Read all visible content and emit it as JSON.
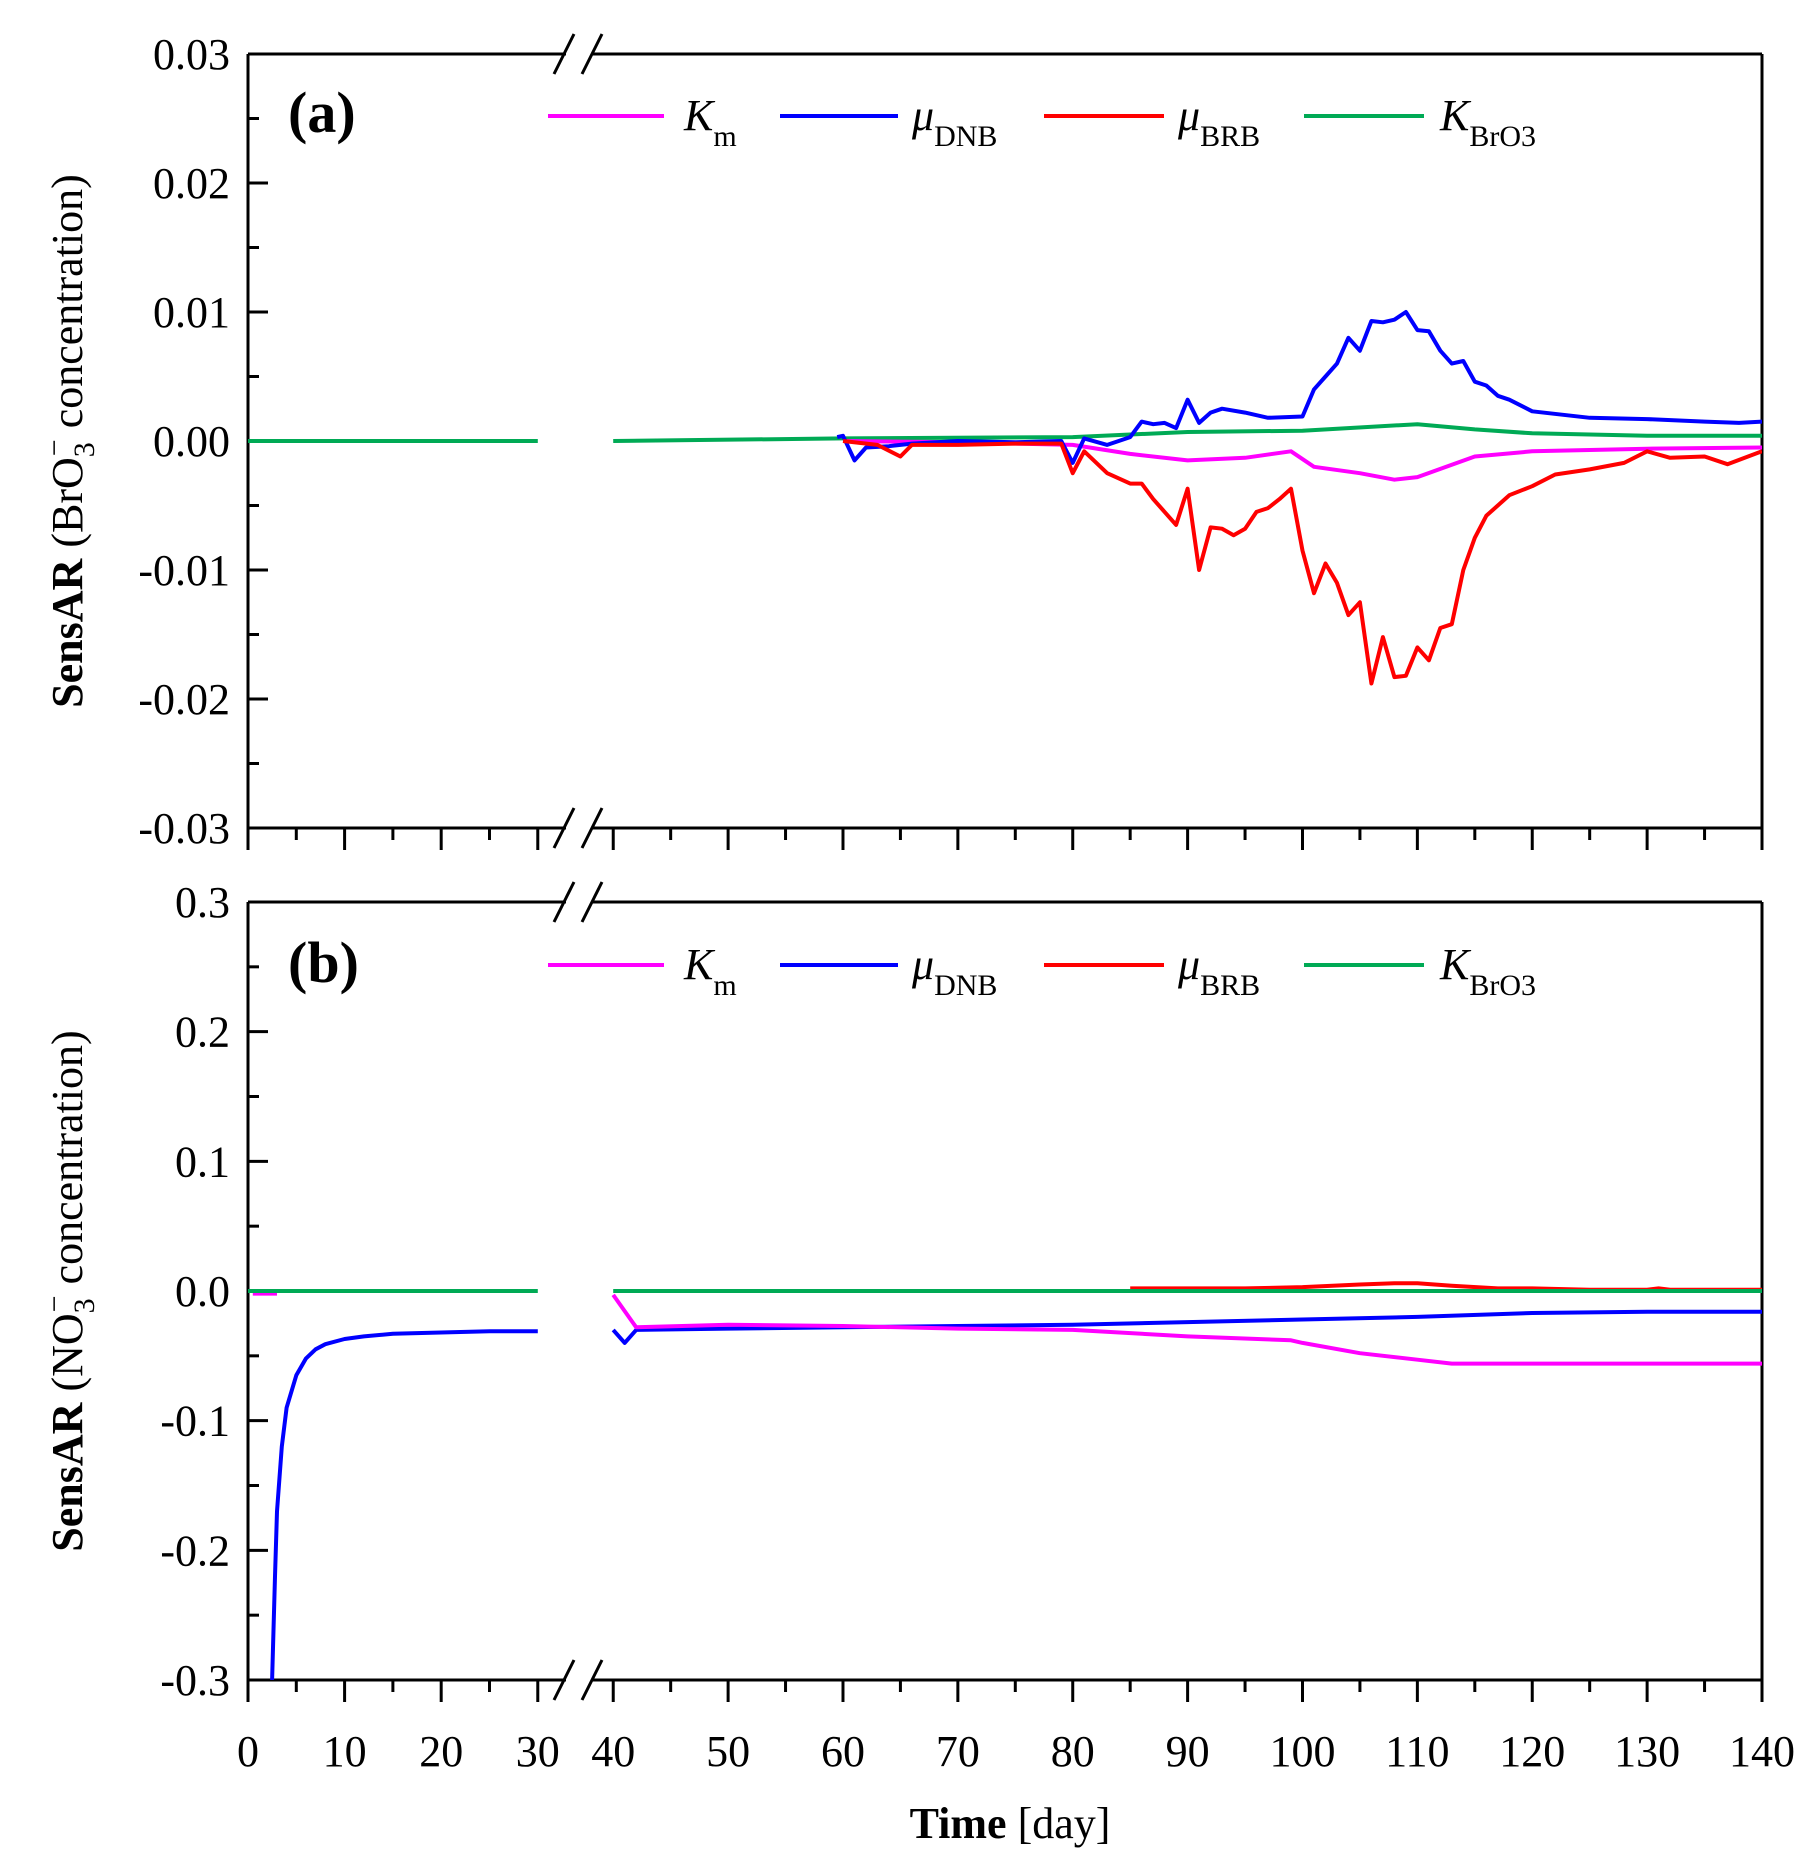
{
  "figure": {
    "xlabel_bold": "Time",
    "xlabel_rest": " [day]",
    "x_ticks_left": [
      0,
      10,
      20,
      30
    ],
    "x_ticks_right": [
      40,
      50,
      60,
      70,
      80,
      90,
      100,
      110,
      120,
      130,
      140
    ],
    "x_break": {
      "left_range": [
        0,
        30
      ],
      "right_range": [
        40,
        140
      ],
      "mark": "//"
    }
  },
  "colors": {
    "Km": "#ff00ff",
    "muDNB": "#0000ff",
    "muBRB": "#ff0000",
    "KBrO3": "#00aa55"
  },
  "chart_data": [
    {
      "type": "line",
      "panel_label": "(a)",
      "ylabel_bold": "SensAR",
      "ylabel_species": "BrO",
      "ylabel_species_sub": "3",
      "ylabel_species_sup": "−",
      "ylabel_rest": " concentration)",
      "ylim": [
        -0.03,
        0.03
      ],
      "y_ticks": [
        "-0.03",
        "-0.02",
        "-0.01",
        "0.00",
        "0.01",
        "0.02",
        "0.03"
      ],
      "y_tick_values": [
        -0.03,
        -0.02,
        -0.01,
        0.0,
        0.01,
        0.02,
        0.03
      ],
      "legend": [
        {
          "key": "Km",
          "label": "K",
          "sub": "m"
        },
        {
          "key": "muDNB",
          "label": "μ",
          "sub": "DNB"
        },
        {
          "key": "muBRB",
          "label": "μ",
          "sub": "BRB"
        },
        {
          "key": "KBrO3",
          "label": "K",
          "sub": "BrO3"
        }
      ],
      "series": [
        {
          "key": "KBrO3",
          "name": "K_BrO3",
          "x": [
            0,
            30,
            40,
            60,
            80,
            90,
            100,
            110,
            115,
            120,
            130,
            140
          ],
          "y": [
            0,
            0,
            0,
            0.0002,
            0.0003,
            0.0007,
            0.0008,
            0.0013,
            0.0009,
            0.0006,
            0.0004,
            0.0004
          ]
        },
        {
          "key": "Km",
          "name": "K_m",
          "x": [
            60,
            70,
            80,
            85,
            90,
            95,
            99,
            101,
            105,
            108,
            110,
            115,
            120,
            130,
            140
          ],
          "y": [
            0,
            -0.0001,
            -0.0003,
            -0.001,
            -0.0015,
            -0.0013,
            -0.0008,
            -0.002,
            -0.0025,
            -0.003,
            -0.0028,
            -0.0012,
            -0.0008,
            -0.0006,
            -0.0005
          ]
        },
        {
          "key": "muDNB",
          "name": "μ_DNB",
          "x": [
            59.5,
            60,
            61,
            62,
            64,
            66,
            70,
            75,
            79,
            80,
            81,
            83,
            85,
            86,
            87,
            88,
            89,
            90,
            91,
            92,
            93,
            95,
            97,
            100,
            101,
            102,
            103,
            104,
            105,
            106,
            107,
            108,
            109,
            110,
            111,
            112,
            113,
            114,
            115,
            116,
            117,
            118,
            120,
            125,
            130,
            135,
            138,
            140
          ],
          "y": [
            0.0003,
            0.0004,
            -0.0015,
            -0.0005,
            -0.0004,
            -0.0002,
            0,
            -0.0001,
            0,
            -0.0017,
            0.0002,
            -0.0003,
            0.0003,
            0.0015,
            0.0013,
            0.0014,
            0.001,
            0.0032,
            0.0014,
            0.0022,
            0.0025,
            0.0022,
            0.0018,
            0.0019,
            0.004,
            0.005,
            0.006,
            0.008,
            0.007,
            0.0093,
            0.0092,
            0.0094,
            0.01,
            0.0086,
            0.0085,
            0.007,
            0.006,
            0.0062,
            0.0046,
            0.0043,
            0.0035,
            0.0032,
            0.0023,
            0.0018,
            0.0017,
            0.0015,
            0.0014,
            0.0015
          ]
        },
        {
          "key": "muBRB",
          "name": "μ_BRB",
          "x": [
            60,
            63,
            65,
            66,
            70,
            75,
            79,
            80,
            81,
            83,
            85,
            86,
            87,
            88,
            89,
            90,
            91,
            92,
            93,
            94,
            95,
            96,
            97,
            98,
            99,
            100,
            101,
            102,
            103,
            104,
            105,
            106,
            107,
            108,
            109,
            110,
            111,
            112,
            113,
            114,
            115,
            116,
            118,
            120,
            122,
            125,
            128,
            130,
            132,
            135,
            137,
            140
          ],
          "y": [
            0,
            -0.0003,
            -0.0012,
            -0.0003,
            -0.0003,
            -0.0002,
            -0.0002,
            -0.0025,
            -0.0008,
            -0.0025,
            -0.0033,
            -0.0033,
            -0.0045,
            -0.0055,
            -0.0065,
            -0.0037,
            -0.01,
            -0.0067,
            -0.0068,
            -0.0073,
            -0.0068,
            -0.0055,
            -0.0052,
            -0.0045,
            -0.0037,
            -0.0085,
            -0.0118,
            -0.0095,
            -0.011,
            -0.0135,
            -0.0125,
            -0.0188,
            -0.0152,
            -0.0183,
            -0.0182,
            -0.016,
            -0.017,
            -0.0145,
            -0.0142,
            -0.01,
            -0.0075,
            -0.0058,
            -0.0042,
            -0.0035,
            -0.0026,
            -0.0022,
            -0.0017,
            -0.0008,
            -0.0013,
            -0.0012,
            -0.0018,
            -0.0008
          ]
        }
      ]
    },
    {
      "type": "line",
      "panel_label": "(b)",
      "ylabel_bold": "SensAR",
      "ylabel_species": "NO",
      "ylabel_species_sub": "3",
      "ylabel_species_sup": "−",
      "ylabel_rest": " concentration)",
      "ylim": [
        -0.3,
        0.3
      ],
      "y_ticks": [
        "-0.3",
        "-0.2",
        "-0.1",
        "0.0",
        "0.1",
        "0.2",
        "0.3"
      ],
      "y_tick_values": [
        -0.3,
        -0.2,
        -0.1,
        0.0,
        0.1,
        0.2,
        0.3
      ],
      "legend": [
        {
          "key": "Km",
          "label": "K",
          "sub": "m"
        },
        {
          "key": "muDNB",
          "label": "μ",
          "sub": "DNB"
        },
        {
          "key": "muBRB",
          "label": "μ",
          "sub": "BRB"
        },
        {
          "key": "KBrO3",
          "label": "K",
          "sub": "BrO3"
        }
      ],
      "series": [
        {
          "key": "muDNB",
          "name": "μ_DNB",
          "x": [
            2.5,
            2.8,
            3,
            3.5,
            4,
            5,
            6,
            7,
            8,
            10,
            12,
            15,
            20,
            25,
            30,
            40,
            41,
            42,
            50,
            60,
            70,
            80,
            90,
            100,
            110,
            120,
            130,
            140
          ],
          "y": [
            -0.3,
            -0.22,
            -0.17,
            -0.12,
            -0.09,
            -0.065,
            -0.052,
            -0.045,
            -0.041,
            -0.037,
            -0.035,
            -0.033,
            -0.032,
            -0.031,
            -0.031,
            -0.03,
            -0.04,
            -0.03,
            -0.029,
            -0.028,
            -0.027,
            -0.026,
            -0.024,
            -0.022,
            -0.02,
            -0.017,
            -0.016,
            -0.016
          ]
        },
        {
          "key": "Km",
          "name": "K_m",
          "x": [
            0.5,
            3,
            40,
            42,
            50,
            60,
            70,
            80,
            90,
            99,
            100,
            105,
            110,
            113,
            120,
            130,
            140
          ],
          "y": [
            -0.002,
            -0.002,
            -0.003,
            -0.028,
            -0.026,
            -0.027,
            -0.029,
            -0.03,
            -0.035,
            -0.038,
            -0.04,
            -0.048,
            -0.053,
            -0.056,
            -0.056,
            -0.056,
            -0.056
          ]
        },
        {
          "key": "muBRB",
          "name": "μ_BRB",
          "x": [
            85,
            95,
            100,
            105,
            108,
            110,
            113,
            117,
            120,
            125,
            130,
            131,
            132,
            140
          ],
          "y": [
            0.002,
            0.002,
            0.003,
            0.005,
            0.006,
            0.006,
            0.004,
            0.002,
            0.002,
            0.001,
            0.001,
            0.002,
            0.001,
            0.001
          ]
        },
        {
          "key": "KBrO3",
          "name": "K_BrO3",
          "x": [
            0,
            30,
            40,
            140
          ],
          "y": [
            0,
            0,
            0,
            0
          ]
        }
      ]
    }
  ]
}
